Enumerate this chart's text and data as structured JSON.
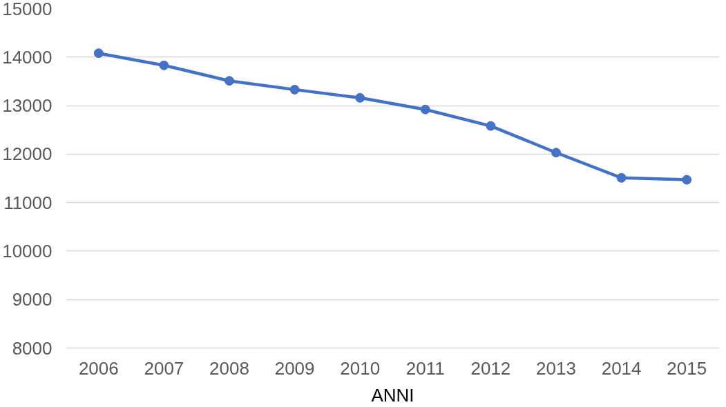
{
  "chart_data": {
    "type": "line",
    "xlabel": "ANNI",
    "categories": [
      "2006",
      "2007",
      "2008",
      "2009",
      "2010",
      "2011",
      "2012",
      "2013",
      "2014",
      "2015"
    ],
    "series": [
      {
        "color": "#4472c4",
        "values": [
          14080,
          13830,
          13510,
          13330,
          13160,
          12920,
          12580,
          12030,
          11510,
          11470
        ]
      }
    ],
    "ylim": [
      8000,
      15000
    ],
    "yticks": [
      8000,
      9000,
      10000,
      11000,
      12000,
      13000,
      14000,
      15000
    ],
    "grid": "y",
    "marker": "circle",
    "line_style": "solid"
  }
}
